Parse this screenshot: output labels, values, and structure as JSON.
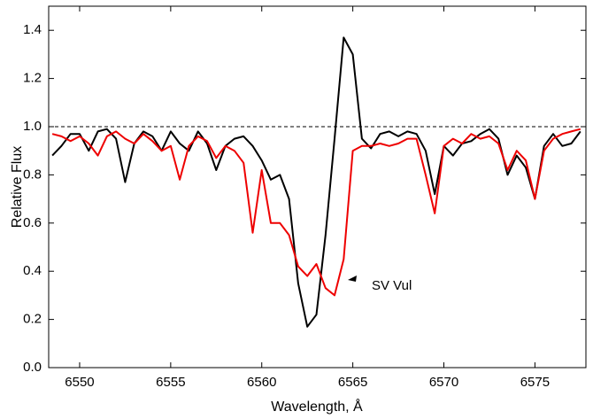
{
  "chart_data": {
    "type": "line",
    "x_label": "Wavelength,  Å",
    "y_label": "Relative  Flux",
    "annotation": "SV Vul",
    "hline": 1,
    "xlim": [
      6548.3,
      6577.8
    ],
    "ylim": [
      0,
      1.5
    ],
    "xticks": [
      6550,
      6555,
      6560,
      6565,
      6570,
      6575
    ],
    "yticks": [
      {
        "value": 0,
        "label": "0.0"
      },
      0.2,
      0.4,
      0.6,
      0.8,
      {
        "value": 1,
        "label": "1.0"
      },
      1.2,
      1.4
    ],
    "x": [
      6548.5,
      6549,
      6549.5,
      6550,
      6550.5,
      6551,
      6551.5,
      6552,
      6552.5,
      6553,
      6553.5,
      6554,
      6554.5,
      6555,
      6555.5,
      6556,
      6556.5,
      6557,
      6557.5,
      6558,
      6558.5,
      6559,
      6559.5,
      6560,
      6560.5,
      6561,
      6561.5,
      6562,
      6562.5,
      6563,
      6563.5,
      6564,
      6564.5,
      6565,
      6565.5,
      6566,
      6566.5,
      6567,
      6567.5,
      6568,
      6568.5,
      6569,
      6569.5,
      6570,
      6570.5,
      6571,
      6571.5,
      6572,
      6572.5,
      6573,
      6573.5,
      6574,
      6574.5,
      6575,
      6575.5,
      6576,
      6576.5,
      6577,
      6577.5
    ],
    "series": [
      {
        "color": "#000000",
        "values": [
          0.88,
          0.92,
          0.97,
          0.97,
          0.9,
          0.98,
          0.99,
          0.95,
          0.77,
          0.93,
          0.98,
          0.96,
          0.9,
          0.98,
          0.93,
          0.9,
          0.98,
          0.93,
          0.82,
          0.92,
          0.95,
          0.96,
          0.92,
          0.86,
          0.78,
          0.8,
          0.7,
          0.35,
          0.17,
          0.22,
          0.55,
          0.95,
          1.37,
          1.3,
          0.95,
          0.91,
          0.97,
          0.98,
          0.96,
          0.98,
          0.97,
          0.9,
          0.72,
          0.92,
          0.88,
          0.93,
          0.94,
          0.97,
          0.99,
          0.95,
          0.8,
          0.88,
          0.83,
          0.7,
          0.92,
          0.97,
          0.92,
          0.93,
          0.98
        ]
      },
      {
        "color": "#ee0000",
        "values": [
          0.97,
          0.96,
          0.94,
          0.96,
          0.93,
          0.88,
          0.96,
          0.98,
          0.95,
          0.93,
          0.97,
          0.94,
          0.9,
          0.92,
          0.78,
          0.92,
          0.96,
          0.94,
          0.87,
          0.92,
          0.9,
          0.85,
          0.56,
          0.82,
          0.6,
          0.6,
          0.55,
          0.42,
          0.38,
          0.43,
          0.33,
          0.3,
          0.45,
          0.9,
          0.92,
          0.92,
          0.93,
          0.92,
          0.93,
          0.95,
          0.95,
          0.8,
          0.64,
          0.92,
          0.95,
          0.93,
          0.97,
          0.95,
          0.96,
          0.93,
          0.82,
          0.9,
          0.86,
          0.7,
          0.9,
          0.95,
          0.97,
          0.98,
          0.99
        ]
      }
    ]
  }
}
